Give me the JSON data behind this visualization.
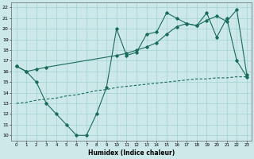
{
  "xlabel": "Humidex (Indice chaleur)",
  "bg_color": "#cce8e8",
  "grid_color": "#99cccc",
  "line_color": "#1a6b5a",
  "xlim": [
    -0.5,
    23.5
  ],
  "ylim": [
    9.5,
    22.5
  ],
  "xticks": [
    0,
    1,
    2,
    3,
    4,
    5,
    6,
    7,
    8,
    9,
    10,
    11,
    12,
    13,
    14,
    15,
    16,
    17,
    18,
    19,
    20,
    21,
    22,
    23
  ],
  "yticks": [
    10,
    11,
    12,
    13,
    14,
    15,
    16,
    17,
    18,
    19,
    20,
    21,
    22
  ],
  "line1_x": [
    0,
    1,
    2,
    3,
    4,
    5,
    6,
    7,
    8,
    9,
    10,
    11,
    12,
    13,
    14,
    15,
    16,
    17,
    18,
    19,
    20,
    21,
    22,
    23
  ],
  "line1_y": [
    16.5,
    16.0,
    15.0,
    13.0,
    12.0,
    11.0,
    10.0,
    10.0,
    12.0,
    14.5,
    20.0,
    17.5,
    17.8,
    19.5,
    19.7,
    21.5,
    21.0,
    20.5,
    20.3,
    21.5,
    19.2,
    21.0,
    17.0,
    15.5
  ],
  "line2_x": [
    0,
    1,
    2,
    3,
    10,
    11,
    12,
    13,
    14,
    15,
    16,
    17,
    18,
    19,
    20,
    21,
    22,
    23
  ],
  "line2_y": [
    16.5,
    16.0,
    16.2,
    16.4,
    17.5,
    17.7,
    18.0,
    18.3,
    18.7,
    19.5,
    20.2,
    20.5,
    20.3,
    20.8,
    21.2,
    20.7,
    21.8,
    15.7
  ],
  "line3_x": [
    0,
    1,
    2,
    3,
    4,
    5,
    6,
    7,
    8,
    9,
    10,
    11,
    12,
    13,
    14,
    15,
    16,
    17,
    18,
    19,
    20,
    21,
    22,
    23
  ],
  "line3_y": [
    13.0,
    13.1,
    13.3,
    13.4,
    13.5,
    13.7,
    13.8,
    14.0,
    14.2,
    14.3,
    14.5,
    14.6,
    14.7,
    14.8,
    14.9,
    15.0,
    15.1,
    15.2,
    15.3,
    15.3,
    15.4,
    15.4,
    15.5,
    15.5
  ],
  "figsize": [
    3.2,
    2.0
  ],
  "dpi": 100
}
